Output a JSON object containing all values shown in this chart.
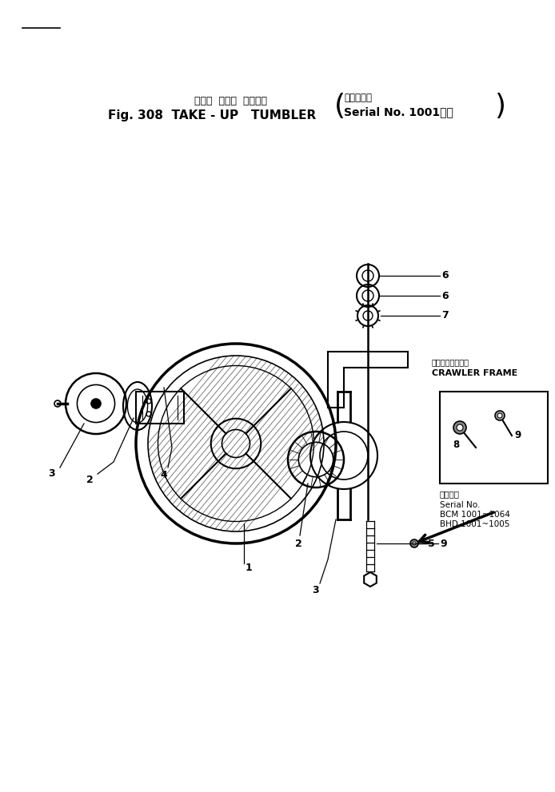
{
  "title_jp": "テーク  アップ  タンブラ",
  "title_serial_jp": "（適用号機",
  "title_en": "Fig. 308  TAKE - UP   TUMBLER",
  "title_serial_en": "Serial No. 1001～）",
  "bg_color": "#ffffff",
  "crawler_jp": "クローラフレーム",
  "crawler_en": "CRAWLER FRAME",
  "serial_jp": "適用号機",
  "serial_no": "Serial No.",
  "serial_bcm": "BCM 1001~1064",
  "serial_bhd": "BHD 1001~1005"
}
